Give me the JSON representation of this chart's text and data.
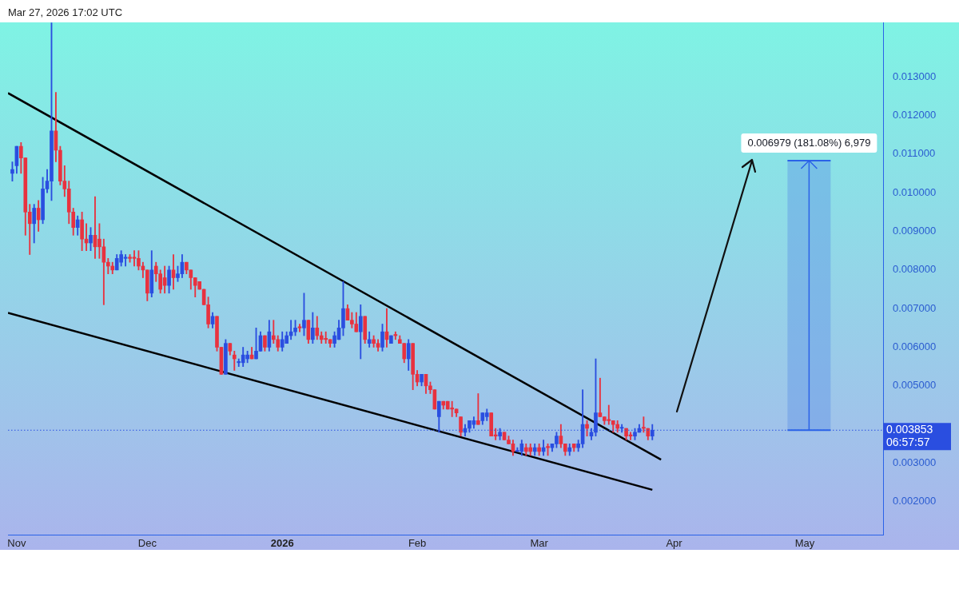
{
  "chart_data": {
    "type": "candlestick",
    "annotations": [
      "Mar 27, 2026 17:02 UTC",
      {
        "text": "0.006979 (181.08%) 6,979",
        "x": "2026-05-02",
        "y": 0.010832
      }
    ],
    "bands": [
      {
        "axis": "y",
        "from": 0.003853,
        "to": 0.010832,
        "color": "#5b8fe6"
      }
    ],
    "x": [
      "2025-10-31",
      "2025-11-01",
      "2025-11-02",
      "2025-11-03",
      "2025-11-04",
      "2025-11-05",
      "2025-11-06",
      "2025-11-07",
      "2025-11-08",
      "2025-11-09",
      "2025-11-10",
      "2025-11-11",
      "2025-11-12",
      "2025-11-13",
      "2025-11-14",
      "2025-11-15",
      "2025-11-16",
      "2025-11-17",
      "2025-11-18",
      "2025-11-19",
      "2025-11-20",
      "2025-11-21",
      "2025-11-22",
      "2025-11-23",
      "2025-11-24",
      "2025-11-25",
      "2025-11-26",
      "2025-11-27",
      "2025-11-28",
      "2025-11-29",
      "2025-11-30",
      "2025-12-01",
      "2025-12-02",
      "2025-12-03",
      "2025-12-04",
      "2025-12-05",
      "2025-12-06",
      "2025-12-07",
      "2025-12-08",
      "2025-12-09",
      "2025-12-10",
      "2025-12-11",
      "2025-12-12",
      "2025-12-13",
      "2025-12-14",
      "2025-12-15",
      "2025-12-16",
      "2025-12-17",
      "2025-12-18",
      "2025-12-19",
      "2025-12-20",
      "2025-12-21",
      "2025-12-22",
      "2025-12-23",
      "2025-12-24",
      "2025-12-25",
      "2025-12-26",
      "2025-12-27",
      "2025-12-28",
      "2025-12-29",
      "2025-12-30",
      "2025-12-31",
      "2026-01-01",
      "2026-01-02",
      "2026-01-03",
      "2026-01-04",
      "2026-01-05",
      "2026-01-06",
      "2026-01-07",
      "2026-01-08",
      "2026-01-09",
      "2026-01-10",
      "2026-01-11",
      "2026-01-12",
      "2026-01-13",
      "2026-01-14",
      "2026-01-15",
      "2026-01-16",
      "2026-01-17",
      "2026-01-18",
      "2026-01-19",
      "2026-01-20",
      "2026-01-21",
      "2026-01-22",
      "2026-01-23",
      "2026-01-24",
      "2026-01-25",
      "2026-01-26",
      "2026-01-27",
      "2026-01-28",
      "2026-01-29",
      "2026-01-30",
      "2026-01-31",
      "2026-02-01",
      "2026-02-02",
      "2026-02-03",
      "2026-02-04",
      "2026-02-05",
      "2026-02-06",
      "2026-02-07",
      "2026-02-08",
      "2026-02-09",
      "2026-02-10",
      "2026-02-11",
      "2026-02-12",
      "2026-02-13",
      "2026-02-14",
      "2026-02-15",
      "2026-02-16",
      "2026-02-17",
      "2026-02-18",
      "2026-02-19",
      "2026-02-20",
      "2026-02-21",
      "2026-02-22",
      "2026-02-23",
      "2026-02-24",
      "2026-02-25",
      "2026-02-26",
      "2026-02-27",
      "2026-02-28",
      "2026-03-01",
      "2026-03-02",
      "2026-03-03",
      "2026-03-04",
      "2026-03-05",
      "2026-03-06",
      "2026-03-07",
      "2026-03-08",
      "2026-03-09",
      "2026-03-10",
      "2026-03-11",
      "2026-03-12",
      "2026-03-13",
      "2026-03-14",
      "2026-03-15",
      "2026-03-16",
      "2026-03-17",
      "2026-03-18",
      "2026-03-19",
      "2026-03-20",
      "2026-03-21",
      "2026-03-22",
      "2026-03-23",
      "2026-03-24",
      "2026-03-25",
      "2026-03-26",
      "2026-03-27"
    ],
    "ohlc": [
      [
        0.0105,
        0.0108,
        0.0103,
        0.0106
      ],
      [
        0.0107,
        0.0112,
        0.0105,
        0.0112
      ],
      [
        0.0112,
        0.0113,
        0.0105,
        0.0109
      ],
      [
        0.0109,
        0.0109,
        0.0089,
        0.0095
      ],
      [
        0.0095,
        0.0097,
        0.0084,
        0.0092
      ],
      [
        0.0092,
        0.0097,
        0.0087,
        0.0096
      ],
      [
        0.0096,
        0.0098,
        0.009,
        0.0093
      ],
      [
        0.0093,
        0.0104,
        0.0092,
        0.0101
      ],
      [
        0.0101,
        0.0106,
        0.01,
        0.0103
      ],
      [
        0.0103,
        0.0144,
        0.0098,
        0.0116
      ],
      [
        0.0116,
        0.0126,
        0.0108,
        0.0111
      ],
      [
        0.0111,
        0.0112,
        0.0102,
        0.0103
      ],
      [
        0.0103,
        0.0107,
        0.0099,
        0.0101
      ],
      [
        0.0101,
        0.0103,
        0.0092,
        0.0095
      ],
      [
        0.0095,
        0.0096,
        0.0089,
        0.0091
      ],
      [
        0.0091,
        0.0094,
        0.0089,
        0.0093
      ],
      [
        0.0093,
        0.0095,
        0.0085,
        0.0088
      ],
      [
        0.0088,
        0.0092,
        0.0085,
        0.0087
      ],
      [
        0.0087,
        0.0091,
        0.0085,
        0.0089
      ],
      [
        0.0089,
        0.0099,
        0.0083,
        0.0086
      ],
      [
        0.0088,
        0.0092,
        0.0083,
        0.0086
      ],
      [
        0.0086,
        0.0088,
        0.0071,
        0.0082
      ],
      [
        0.0082,
        0.0083,
        0.0079,
        0.0081
      ],
      [
        0.0081,
        0.0082,
        0.0079,
        0.008
      ],
      [
        0.008,
        0.0084,
        0.008,
        0.0083
      ],
      [
        0.0082,
        0.0085,
        0.0081,
        0.0084
      ],
      [
        0.0083,
        0.0084,
        0.0081,
        0.0083
      ],
      [
        0.0083,
        0.0084,
        0.0082,
        0.0083
      ],
      [
        0.0083,
        0.0085,
        0.0081,
        0.0083
      ],
      [
        0.0083,
        0.0085,
        0.008,
        0.0081
      ],
      [
        0.0081,
        0.0082,
        0.0078,
        0.008
      ],
      [
        0.008,
        0.008,
        0.0072,
        0.0074
      ],
      [
        0.0074,
        0.0085,
        0.0073,
        0.008
      ],
      [
        0.0081,
        0.0082,
        0.0077,
        0.0079
      ],
      [
        0.0079,
        0.008,
        0.0074,
        0.0075
      ],
      [
        0.0078,
        0.0081,
        0.0074,
        0.0076
      ],
      [
        0.0076,
        0.0081,
        0.0074,
        0.008
      ],
      [
        0.008,
        0.0084,
        0.0075,
        0.0078
      ],
      [
        0.0078,
        0.0081,
        0.0077,
        0.0079
      ],
      [
        0.0079,
        0.0084,
        0.0078,
        0.0082
      ],
      [
        0.0082,
        0.0082,
        0.0079,
        0.008
      ],
      [
        0.008,
        0.008,
        0.0075,
        0.0078
      ],
      [
        0.0078,
        0.0078,
        0.0073,
        0.0076
      ],
      [
        0.0077,
        0.0077,
        0.0075,
        0.0075
      ],
      [
        0.0075,
        0.0075,
        0.0071,
        0.0071
      ],
      [
        0.0071,
        0.0073,
        0.0065,
        0.0066
      ],
      [
        0.0066,
        0.0069,
        0.0065,
        0.0068
      ],
      [
        0.0068,
        0.0068,
        0.0059,
        0.006
      ],
      [
        0.006,
        0.006,
        0.0053,
        0.0053
      ],
      [
        0.0053,
        0.0062,
        0.0053,
        0.0061
      ],
      [
        0.0061,
        0.0061,
        0.0058,
        0.0059
      ],
      [
        0.0058,
        0.0059,
        0.0054,
        0.0057
      ],
      [
        0.0056,
        0.0057,
        0.0055,
        0.0056
      ],
      [
        0.0056,
        0.006,
        0.0055,
        0.0058
      ],
      [
        0.0057,
        0.0059,
        0.0056,
        0.0058
      ],
      [
        0.0058,
        0.006,
        0.0057,
        0.0057
      ],
      [
        0.0057,
        0.0065,
        0.0057,
        0.0059
      ],
      [
        0.0059,
        0.0064,
        0.0059,
        0.0063
      ],
      [
        0.0063,
        0.0063,
        0.0059,
        0.006
      ],
      [
        0.006,
        0.0067,
        0.0059,
        0.0064
      ],
      [
        0.0063,
        0.0067,
        0.0061,
        0.0062
      ],
      [
        0.0062,
        0.0063,
        0.0059,
        0.006
      ],
      [
        0.006,
        0.0064,
        0.0059,
        0.0062
      ],
      [
        0.0061,
        0.0064,
        0.0061,
        0.0063
      ],
      [
        0.0063,
        0.0067,
        0.0062,
        0.0064
      ],
      [
        0.0064,
        0.0067,
        0.0063,
        0.0065
      ],
      [
        0.0065,
        0.0066,
        0.0064,
        0.0065
      ],
      [
        0.0065,
        0.0074,
        0.0063,
        0.0067
      ],
      [
        0.0067,
        0.0067,
        0.0061,
        0.0062
      ],
      [
        0.0062,
        0.0069,
        0.0061,
        0.0065
      ],
      [
        0.0065,
        0.0068,
        0.0062,
        0.0063
      ],
      [
        0.0063,
        0.0064,
        0.0061,
        0.0062
      ],
      [
        0.0062,
        0.0064,
        0.0061,
        0.0062
      ],
      [
        0.0062,
        0.0062,
        0.006,
        0.0061
      ],
      [
        0.0061,
        0.0064,
        0.006,
        0.0063
      ],
      [
        0.0062,
        0.0067,
        0.0062,
        0.0065
      ],
      [
        0.0065,
        0.0077,
        0.0063,
        0.007
      ],
      [
        0.007,
        0.0071,
        0.0067,
        0.0067
      ],
      [
        0.0067,
        0.0069,
        0.0065,
        0.0066
      ],
      [
        0.0066,
        0.0069,
        0.0064,
        0.0064
      ],
      [
        0.0064,
        0.0071,
        0.0057,
        0.0068
      ],
      [
        0.0068,
        0.0068,
        0.0061,
        0.0062
      ],
      [
        0.0061,
        0.0064,
        0.006,
        0.0062
      ],
      [
        0.0062,
        0.0063,
        0.006,
        0.0061
      ],
      [
        0.0061,
        0.0062,
        0.0059,
        0.006
      ],
      [
        0.006,
        0.0066,
        0.0059,
        0.0064
      ],
      [
        0.0064,
        0.007,
        0.006,
        0.0062
      ],
      [
        0.0061,
        0.0063,
        0.0061,
        0.0063
      ],
      [
        0.0063,
        0.0064,
        0.0062,
        0.0063
      ],
      [
        0.0062,
        0.0063,
        0.0061,
        0.0061
      ],
      [
        0.0061,
        0.0061,
        0.0056,
        0.0057
      ],
      [
        0.0057,
        0.0062,
        0.0054,
        0.0061
      ],
      [
        0.0061,
        0.0061,
        0.0049,
        0.0053
      ],
      [
        0.0053,
        0.0054,
        0.005,
        0.0051
      ],
      [
        0.0051,
        0.0053,
        0.005,
        0.0053
      ],
      [
        0.0053,
        0.0053,
        0.0048,
        0.005
      ],
      [
        0.005,
        0.0051,
        0.0048,
        0.0049
      ],
      [
        0.0049,
        0.0049,
        0.0044,
        0.0044
      ],
      [
        0.0042,
        0.0046,
        0.0038,
        0.0046
      ],
      [
        0.0046,
        0.0046,
        0.0044,
        0.0045
      ],
      [
        0.0046,
        0.0046,
        0.0044,
        0.0044
      ],
      [
        0.0044,
        0.0046,
        0.0042,
        0.0044
      ],
      [
        0.0044,
        0.0044,
        0.0042,
        0.0043
      ],
      [
        0.0042,
        0.0042,
        0.0037,
        0.0038
      ],
      [
        0.0038,
        0.004,
        0.0037,
        0.0039
      ],
      [
        0.0039,
        0.0041,
        0.0038,
        0.0041
      ],
      [
        0.004,
        0.0042,
        0.0039,
        0.0041
      ],
      [
        0.0041,
        0.0048,
        0.004,
        0.004
      ],
      [
        0.0041,
        0.0043,
        0.004,
        0.0043
      ],
      [
        0.0042,
        0.0044,
        0.0041,
        0.0043
      ],
      [
        0.0043,
        0.0043,
        0.0037,
        0.0037
      ],
      [
        0.0037,
        0.0039,
        0.0036,
        0.0037
      ],
      [
        0.0037,
        0.0039,
        0.0036,
        0.0038
      ],
      [
        0.0038,
        0.0038,
        0.0036,
        0.0036
      ],
      [
        0.0036,
        0.0037,
        0.0035,
        0.0035
      ],
      [
        0.0035,
        0.0036,
        0.0032,
        0.0033
      ],
      [
        0.0033,
        0.0034,
        0.0033,
        0.0033
      ],
      [
        0.0033,
        0.0036,
        0.0032,
        0.0035
      ],
      [
        0.0034,
        0.0035,
        0.0032,
        0.0033
      ],
      [
        0.0034,
        0.0035,
        0.0032,
        0.0033
      ],
      [
        0.0033,
        0.0035,
        0.0032,
        0.0034
      ],
      [
        0.0034,
        0.0035,
        0.0032,
        0.0033
      ],
      [
        0.0033,
        0.0036,
        0.0032,
        0.0034
      ],
      [
        0.0034,
        0.0035,
        0.0032,
        0.0034
      ],
      [
        0.0034,
        0.0035,
        0.0033,
        0.0035
      ],
      [
        0.0035,
        0.0038,
        0.0034,
        0.0037
      ],
      [
        0.0037,
        0.004,
        0.0034,
        0.0035
      ],
      [
        0.0035,
        0.0035,
        0.0032,
        0.0033
      ],
      [
        0.0033,
        0.0035,
        0.0032,
        0.0034
      ],
      [
        0.0035,
        0.0035,
        0.0033,
        0.0034
      ],
      [
        0.0034,
        0.0036,
        0.0033,
        0.0035
      ],
      [
        0.0035,
        0.0049,
        0.0034,
        0.004
      ],
      [
        0.004,
        0.0041,
        0.0037,
        0.0039
      ],
      [
        0.0037,
        0.0039,
        0.0036,
        0.0038
      ],
      [
        0.0038,
        0.0057,
        0.0037,
        0.0043
      ],
      [
        0.0043,
        0.0052,
        0.0042,
        0.0042
      ],
      [
        0.0042,
        0.0042,
        0.004,
        0.0041
      ],
      [
        0.0041,
        0.0045,
        0.004,
        0.0041
      ],
      [
        0.0041,
        0.0041,
        0.0038,
        0.004
      ],
      [
        0.004,
        0.0041,
        0.0038,
        0.0039
      ],
      [
        0.0039,
        0.004,
        0.0038,
        0.0039
      ],
      [
        0.0039,
        0.0039,
        0.0036,
        0.0037
      ],
      [
        0.0037,
        0.0038,
        0.0036,
        0.0037
      ],
      [
        0.0037,
        0.0039,
        0.0036,
        0.0038
      ],
      [
        0.0038,
        0.004,
        0.0038,
        0.0039
      ],
      [
        0.0039,
        0.0042,
        0.0038,
        0.0039
      ],
      [
        0.0039,
        0.0039,
        0.0036,
        0.0037
      ],
      [
        0.0037,
        0.004,
        0.0036,
        0.003853
      ]
    ],
    "colors": [
      "#2a4ee0",
      "#2a4ee0",
      "#e8323f",
      "#e8323f",
      "#e8323f",
      "#2a4ee0",
      "#e8323f",
      "#2a4ee0",
      "#2a4ee0",
      "#2a4ee0",
      "#e8323f",
      "#e8323f",
      "#e8323f",
      "#e8323f",
      "#e8323f",
      "#2a4ee0",
      "#e8323f",
      "#e8323f",
      "#2a4ee0",
      "#e8323f",
      "#e8323f",
      "#e8323f",
      "#e8323f",
      "#e8323f",
      "#2a4ee0",
      "#2a4ee0",
      "#2a4ee0",
      "#e8323f",
      "#e8323f",
      "#e8323f",
      "#e8323f",
      "#e8323f",
      "#2a4ee0",
      "#e8323f",
      "#e8323f",
      "#e8323f",
      "#2a4ee0",
      "#e8323f",
      "#2a4ee0",
      "#2a4ee0",
      "#e8323f",
      "#e8323f",
      "#e8323f",
      "#e8323f",
      "#e8323f",
      "#e8323f",
      "#2a4ee0",
      "#e8323f",
      "#e8323f",
      "#2a4ee0",
      "#e8323f",
      "#e8323f",
      "#2a4ee0",
      "#2a4ee0",
      "#2a4ee0",
      "#e8323f",
      "#2a4ee0",
      "#2a4ee0",
      "#e8323f",
      "#2a4ee0",
      "#e8323f",
      "#e8323f",
      "#2a4ee0",
      "#2a4ee0",
      "#2a4ee0",
      "#2a4ee0",
      "#e8323f",
      "#2a4ee0",
      "#e8323f",
      "#2a4ee0",
      "#e8323f",
      "#e8323f",
      "#e8323f",
      "#e8323f",
      "#2a4ee0",
      "#2a4ee0",
      "#2a4ee0",
      "#e8323f",
      "#e8323f",
      "#e8323f",
      "#2a4ee0",
      "#e8323f",
      "#2a4ee0",
      "#e8323f",
      "#e8323f",
      "#2a4ee0",
      "#e8323f",
      "#2a4ee0",
      "#e8323f",
      "#e8323f",
      "#e8323f",
      "#2a4ee0",
      "#e8323f",
      "#e8323f",
      "#2a4ee0",
      "#e8323f",
      "#e8323f",
      "#e8323f",
      "#2a4ee0",
      "#e8323f",
      "#e8323f",
      "#e8323f",
      "#e8323f",
      "#e8323f",
      "#2a4ee0",
      "#2a4ee0",
      "#2a4ee0",
      "#e8323f",
      "#2a4ee0",
      "#2a4ee0",
      "#e8323f",
      "#e8323f",
      "#2a4ee0",
      "#e8323f",
      "#e8323f",
      "#e8323f",
      "#2a4ee0",
      "#2a4ee0",
      "#e8323f",
      "#e8323f",
      "#2a4ee0",
      "#e8323f",
      "#2a4ee0",
      "#e8323f",
      "#2a4ee0",
      "#2a4ee0",
      "#e8323f",
      "#e8323f",
      "#2a4ee0",
      "#e8323f",
      "#2a4ee0",
      "#2a4ee0",
      "#e8323f",
      "#2a4ee0",
      "#2a4ee0",
      "#e8323f",
      "#e8323f",
      "#e8323f",
      "#e8323f",
      "#e8323f",
      "#2a4ee0",
      "#e8323f",
      "#e8323f",
      "#2a4ee0",
      "#2a4ee0",
      "#e8323f",
      "#e8323f",
      "#2a4ee0"
    ],
    "series": [
      {
        "type": "line",
        "color": "#000000",
        "x": [
          "2025-10-30",
          "2026-03-29"
        ],
        "values": [
          0.01258,
          0.00309
        ]
      },
      {
        "type": "line",
        "color": "#000000",
        "x": [
          "2025-10-30",
          "2026-03-27"
        ],
        "values": [
          0.00689,
          0.00231
        ]
      }
    ],
    "ref_lines": [
      {
        "axis": "y",
        "value": 0.003853,
        "label": "0.003853\n06:57:57",
        "color": "#2a4ee0",
        "line_style": "dotted"
      }
    ],
    "xlim": [
      "2025-10-30",
      "2026-05-19"
    ],
    "xticks": [
      {
        "value": "2025-11-01",
        "label": "Nov"
      },
      {
        "value": "2025-12-01",
        "label": "Dec"
      },
      {
        "value": "2026-01-01",
        "label": "2026"
      },
      {
        "value": "2026-02-01",
        "label": "Feb"
      },
      {
        "value": "2026-03-01",
        "label": "Mar"
      },
      {
        "value": "2026-04-01",
        "label": "Apr"
      },
      {
        "value": "2026-05-01",
        "label": "May"
      }
    ],
    "ylim": [
      0.00114,
      0.01441
    ],
    "yticks": [
      {
        "value": 0.002,
        "label": "0.002000"
      },
      {
        "value": 0.003,
        "label": "0.003000"
      },
      {
        "value": 0.005,
        "label": "0.005000"
      },
      {
        "value": 0.006,
        "label": "0.006000"
      },
      {
        "value": 0.007,
        "label": "0.007000"
      },
      {
        "value": 0.008,
        "label": "0.008000"
      },
      {
        "value": 0.009,
        "label": "0.009000"
      },
      {
        "value": 0.01,
        "label": "0.010000"
      },
      {
        "value": 0.011,
        "label": "0.011000"
      },
      {
        "value": 0.012,
        "label": "0.012000"
      },
      {
        "value": 0.013,
        "label": "0.013000"
      }
    ],
    "grid": false,
    "legend": false
  }
}
